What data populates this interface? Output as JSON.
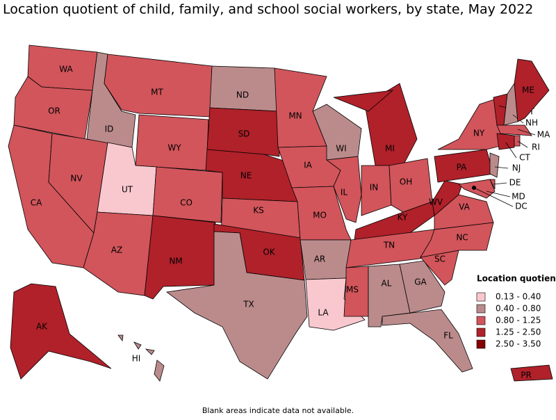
{
  "title": "Location quotient of child, family, and school social workers, by state, May 2022",
  "legend": {
    "title": "Location quotient",
    "items": [
      {
        "label": "0.13 - 0.40",
        "color": "#f9c8cf"
      },
      {
        "label": "0.40 - 0.80",
        "color": "#bb8b8c"
      },
      {
        "label": "0.80 - 1.25",
        "color": "#d1555b"
      },
      {
        "label": "1.25 - 2.50",
        "color": "#b0212a"
      },
      {
        "label": "2.50 - 3.50",
        "color": "#850000"
      }
    ]
  },
  "states": [
    {
      "abbr": "WA",
      "color": "#d1555b"
    },
    {
      "abbr": "OR",
      "color": "#d1555b"
    },
    {
      "abbr": "CA",
      "color": "#d1555b"
    },
    {
      "abbr": "NV",
      "color": "#d1555b"
    },
    {
      "abbr": "ID",
      "color": "#bb8b8c"
    },
    {
      "abbr": "MT",
      "color": "#d1555b"
    },
    {
      "abbr": "WY",
      "color": "#d1555b"
    },
    {
      "abbr": "UT",
      "color": "#f9c8cf"
    },
    {
      "abbr": "CO",
      "color": "#d1555b"
    },
    {
      "abbr": "AZ",
      "color": "#d1555b"
    },
    {
      "abbr": "NM",
      "color": "#b0212a"
    },
    {
      "abbr": "ND",
      "color": "#bb8b8c"
    },
    {
      "abbr": "SD",
      "color": "#b0212a"
    },
    {
      "abbr": "NE",
      "color": "#b0212a"
    },
    {
      "abbr": "KS",
      "color": "#d1555b"
    },
    {
      "abbr": "OK",
      "color": "#b0212a"
    },
    {
      "abbr": "TX",
      "color": "#bb8b8c"
    },
    {
      "abbr": "MN",
      "color": "#d1555b"
    },
    {
      "abbr": "IA",
      "color": "#d1555b"
    },
    {
      "abbr": "MO",
      "color": "#d1555b"
    },
    {
      "abbr": "AR",
      "color": "#bb8b8c"
    },
    {
      "abbr": "LA",
      "color": "#f9c8cf"
    },
    {
      "abbr": "WI",
      "color": "#bb8b8c"
    },
    {
      "abbr": "IL",
      "color": "#d1555b"
    },
    {
      "abbr": "MI",
      "color": "#b0212a"
    },
    {
      "abbr": "IN",
      "color": "#d1555b"
    },
    {
      "abbr": "OH",
      "color": "#d1555b"
    },
    {
      "abbr": "KY",
      "color": "#b0212a"
    },
    {
      "abbr": "TN",
      "color": "#d1555b"
    },
    {
      "abbr": "MS",
      "color": "#d1555b"
    },
    {
      "abbr": "AL",
      "color": "#bb8b8c"
    },
    {
      "abbr": "GA",
      "color": "#bb8b8c"
    },
    {
      "abbr": "FL",
      "color": "#bb8b8c"
    },
    {
      "abbr": "SC",
      "color": "#d1555b"
    },
    {
      "abbr": "NC",
      "color": "#d1555b"
    },
    {
      "abbr": "VA",
      "color": "#d1555b"
    },
    {
      "abbr": "WV",
      "color": "#b0212a"
    },
    {
      "abbr": "PA",
      "color": "#b0212a"
    },
    {
      "abbr": "NY",
      "color": "#d1555b"
    },
    {
      "abbr": "NJ",
      "color": "#bb8b8c"
    },
    {
      "abbr": "DE",
      "color": "#d1555b"
    },
    {
      "abbr": "MD",
      "color": "#d1555b"
    },
    {
      "abbr": "DC",
      "color": "#d1555b"
    },
    {
      "abbr": "VT",
      "color": "#b0212a"
    },
    {
      "abbr": "NH",
      "color": "#bb8b8c"
    },
    {
      "abbr": "ME",
      "color": "#b0212a"
    },
    {
      "abbr": "MA",
      "color": "#d1555b"
    },
    {
      "abbr": "CT",
      "color": "#b0212a"
    },
    {
      "abbr": "RI",
      "color": "#d1555b"
    },
    {
      "abbr": "AK",
      "color": "#b0212a"
    },
    {
      "abbr": "HI",
      "color": "#bb8b8c"
    },
    {
      "abbr": "PR",
      "color": "#b0212a"
    }
  ],
  "footnote": "Blank areas indicate data not available."
}
